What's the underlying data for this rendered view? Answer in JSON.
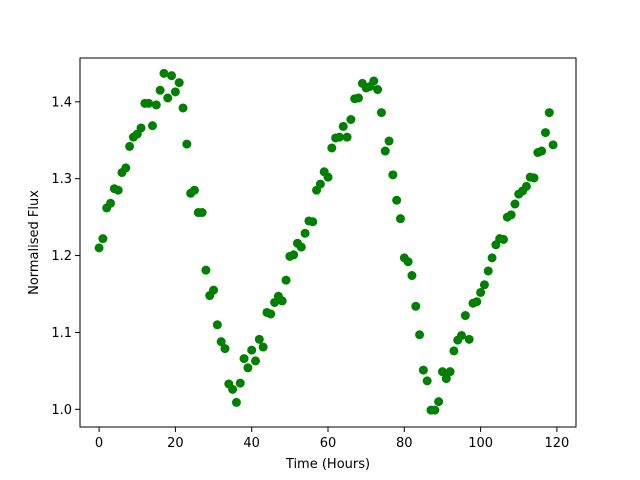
{
  "chart_data": {
    "type": "scatter",
    "title": "",
    "xlabel": "Time (Hours)",
    "ylabel": "Normalised Flux",
    "xlim": [
      -5,
      125
    ],
    "ylim": [
      0.977,
      1.457
    ],
    "xticks": [
      0,
      20,
      40,
      60,
      80,
      100,
      120
    ],
    "yticks": [
      1.0,
      1.1,
      1.2,
      1.3,
      1.4
    ],
    "xtick_labels": [
      "0",
      "20",
      "40",
      "60",
      "80",
      "100",
      "120"
    ],
    "ytick_labels": [
      "1.0",
      "1.1",
      "1.2",
      "1.3",
      "1.4"
    ],
    "grid": false,
    "marker_color": "#008000",
    "series": [
      {
        "x": [
          0,
          1,
          2,
          3,
          4,
          5,
          6,
          7,
          8,
          9,
          10,
          11,
          12,
          13,
          14,
          15,
          16,
          17,
          18,
          19,
          20,
          21,
          22,
          23,
          24,
          25,
          26,
          27,
          28,
          29,
          30,
          31,
          32,
          33,
          34,
          35,
          36,
          37,
          38,
          39,
          40,
          41,
          42,
          43,
          44,
          45,
          46,
          47,
          48,
          49,
          50,
          51,
          52,
          53,
          54,
          55,
          56,
          57,
          58,
          59,
          60,
          61,
          62,
          63,
          64,
          65,
          66,
          67,
          68,
          69,
          70,
          71,
          72,
          73,
          74,
          75,
          76,
          77,
          78,
          79,
          80,
          81,
          82,
          83,
          84,
          85,
          86,
          87,
          88,
          89,
          90,
          91,
          92,
          93,
          94,
          95,
          96,
          97,
          98,
          99,
          100,
          101,
          102,
          103,
          104,
          105,
          106,
          107,
          108,
          109,
          110,
          111,
          112,
          113,
          114,
          115,
          116,
          117,
          118,
          119
        ],
        "y": [
          1.21,
          1.222,
          1.262,
          1.268,
          1.287,
          1.285,
          1.308,
          1.314,
          1.342,
          1.354,
          1.358,
          1.366,
          1.398,
          1.398,
          1.369,
          1.396,
          1.415,
          1.437,
          1.405,
          1.434,
          1.413,
          1.425,
          1.392,
          1.345,
          1.281,
          1.285,
          1.256,
          1.256,
          1.181,
          1.148,
          1.155,
          1.11,
          1.088,
          1.079,
          1.033,
          1.026,
          1.009,
          1.034,
          1.066,
          1.054,
          1.077,
          1.063,
          1.091,
          1.081,
          1.126,
          1.124,
          1.139,
          1.147,
          1.141,
          1.168,
          1.199,
          1.201,
          1.216,
          1.211,
          1.229,
          1.245,
          1.244,
          1.285,
          1.293,
          1.309,
          1.302,
          1.34,
          1.353,
          1.354,
          1.368,
          1.354,
          1.377,
          1.404,
          1.405,
          1.424,
          1.418,
          1.42,
          1.427,
          1.416,
          1.386,
          1.336,
          1.349,
          1.305,
          1.272,
          1.248,
          1.197,
          1.192,
          1.174,
          1.134,
          1.097,
          1.051,
          1.037,
          0.999,
          0.999,
          1.01,
          1.049,
          1.04,
          1.049,
          1.076,
          1.09,
          1.096,
          1.122,
          1.091,
          1.138,
          1.14,
          1.152,
          1.162,
          1.18,
          1.197,
          1.214,
          1.222,
          1.221,
          1.25,
          1.253,
          1.267,
          1.28,
          1.284,
          1.29,
          1.302,
          1.301,
          1.334,
          1.336,
          1.36,
          1.386,
          1.344
        ]
      }
    ]
  }
}
